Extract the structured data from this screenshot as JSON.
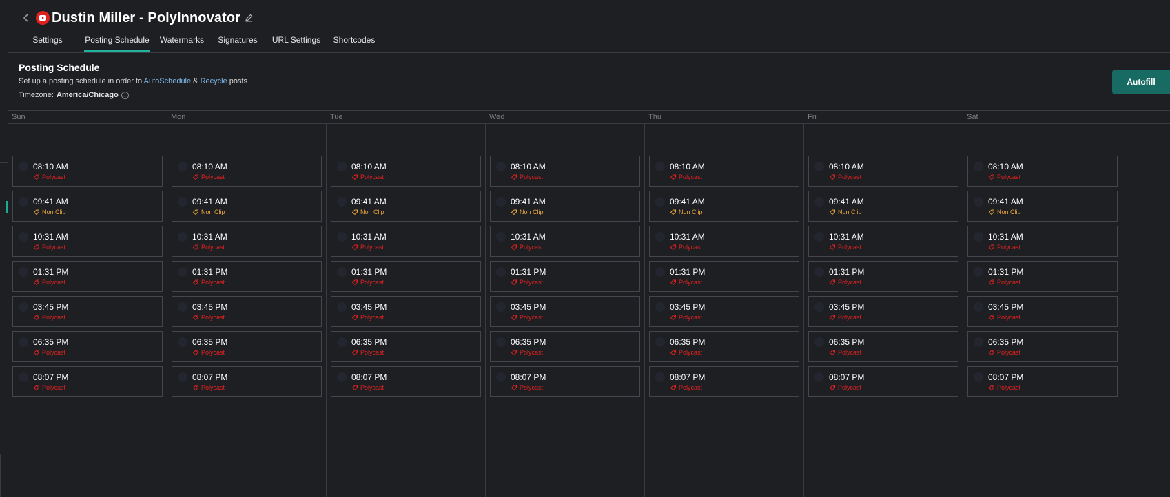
{
  "header": {
    "title": "Dustin Miller - PolyInnovator",
    "back_icon": "chevron-left-icon",
    "platform_icon": "youtube-icon",
    "edit_icon": "pencil-icon"
  },
  "tabs": [
    {
      "label": "Settings",
      "active": false
    },
    {
      "label": "Posting Schedule",
      "active": true
    },
    {
      "label": "Watermarks",
      "active": false
    },
    {
      "label": "Signatures",
      "active": false
    },
    {
      "label": "URL Settings",
      "active": false
    },
    {
      "label": "Shortcodes",
      "active": false
    }
  ],
  "section": {
    "title": "Posting Schedule",
    "desc_prefix": "Set up a posting schedule in order to ",
    "link_autoschedule": "AutoSchedule",
    "desc_and": " & ",
    "link_recycle": "Recycle",
    "desc_suffix": " posts",
    "timezone_label": "Timezone:",
    "timezone_value": "America/Chicago",
    "info_icon_glyph": "i"
  },
  "autofill_label": "Autofill",
  "colors": {
    "accent": "#1fb3a0",
    "button": "#176b63",
    "polycast": "#e0211f",
    "nonclip": "#e8a33d",
    "link": "#7fb8e8"
  },
  "days": [
    "Sun",
    "Mon",
    "Tue",
    "Wed",
    "Thu",
    "Fri",
    "Sat"
  ],
  "slots": [
    {
      "time": "08:10 AM",
      "type": "Polycast"
    },
    {
      "time": "09:41 AM",
      "type": "Non Clip"
    },
    {
      "time": "10:31 AM",
      "type": "Polycast"
    },
    {
      "time": "01:31 PM",
      "type": "Polycast"
    },
    {
      "time": "03:45 PM",
      "type": "Polycast"
    },
    {
      "time": "06:35 PM",
      "type": "Polycast"
    },
    {
      "time": "08:07 PM",
      "type": "Polycast"
    }
  ]
}
